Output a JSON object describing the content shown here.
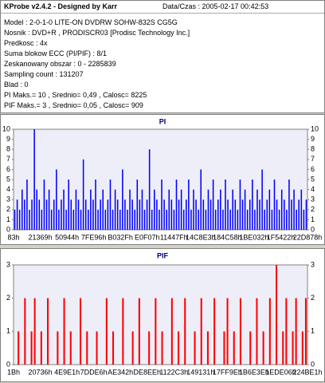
{
  "header": {
    "title": "KProbe v2.4.2 - Designed by Karr",
    "datetime": "Data/Czas : 2005-02-17 00:42:53"
  },
  "info": [
    "Model : 2-0-1-0 LITE-ON DVDRW SOHW-832S  CG5G",
    "Nosnik : DVD+R , PRODISCR03 [Prodisc Technology Inc.]",
    "Predkosc : 4x",
    "Suma blokow ECC (PI/PIF) : 8/1",
    "Zeskanowany obszar : 0 - 2285839",
    "Sampling count : 131207",
    "Blad : 0",
    "PI Maks.= 10 , Srednio= 0,49 , Calosc= 8225",
    "PIF Maks.= 3 , Srednio= 0,05 , Calosc= 909"
  ],
  "chart_data": [
    {
      "type": "bar",
      "title": "PI",
      "color": "#0000ff",
      "ylim": [
        0,
        10
      ],
      "yticks": [
        0,
        1,
        2,
        3,
        4,
        5,
        6,
        7,
        8,
        9,
        10
      ],
      "x_labels": [
        "83h",
        "21369h",
        "50944h",
        "7FE96h",
        "B032Fh",
        "E0F07h",
        "11447Fh",
        "14C8E3h",
        "184C58h",
        "1BE032h",
        "1F5422h",
        "22D878h"
      ],
      "values": [
        2,
        3,
        2,
        4,
        3,
        5,
        2,
        3,
        10,
        4,
        3,
        2,
        5,
        3,
        4,
        2,
        3,
        6,
        2,
        3,
        4,
        2,
        5,
        3,
        2,
        4,
        3,
        2,
        7,
        3,
        2,
        4,
        3,
        5,
        2,
        3,
        4,
        2,
        3,
        5,
        2,
        4,
        3,
        2,
        6,
        3,
        2,
        4,
        3,
        2,
        5,
        3,
        4,
        2,
        3,
        8,
        2,
        4,
        3,
        2,
        5,
        3,
        2,
        4,
        3,
        2,
        5,
        3,
        4,
        2,
        3,
        5,
        2,
        4,
        3,
        2,
        6,
        3,
        2,
        4,
        3,
        5,
        2,
        3,
        4,
        2,
        5,
        3,
        2,
        4,
        3,
        2,
        5,
        3,
        4,
        2,
        3,
        5,
        2,
        4,
        3,
        6,
        2,
        3,
        4,
        2,
        5,
        3,
        2,
        4,
        3,
        2,
        5,
        3,
        4,
        2,
        3,
        4,
        2,
        3
      ]
    },
    {
      "type": "bar",
      "title": "PIF",
      "color": "#ff0000",
      "ylim": [
        0,
        3
      ],
      "yticks": [
        0,
        1,
        2,
        3
      ],
      "x_labels": [
        "1Bh",
        "20736h",
        "4E9E1h",
        "7DDE6h",
        "AE342h",
        "DE8EEh",
        "1122C3h",
        "149131h",
        "17FF9Eh",
        "1B6E3Eh",
        "1EDE06h",
        "224BE1h"
      ],
      "values": [
        0,
        1,
        0,
        2,
        0,
        1,
        2,
        0,
        1,
        0,
        2,
        0,
        0,
        1,
        0,
        2,
        0,
        1,
        0,
        0,
        2,
        0,
        1,
        0,
        0,
        1,
        0,
        0,
        2,
        0,
        1,
        0,
        0,
        2,
        0,
        0,
        1,
        0,
        2,
        0,
        0,
        1,
        0,
        2,
        0,
        1,
        0,
        0,
        2,
        0,
        1,
        0,
        2,
        0,
        0,
        1,
        0,
        2,
        0,
        1,
        0,
        2,
        0,
        0,
        1,
        2,
        0,
        1,
        0,
        2,
        0,
        0,
        1,
        0,
        2,
        0,
        1,
        0,
        2,
        0,
        3,
        0,
        1,
        2,
        0,
        1,
        2,
        0,
        1,
        2
      ]
    }
  ]
}
